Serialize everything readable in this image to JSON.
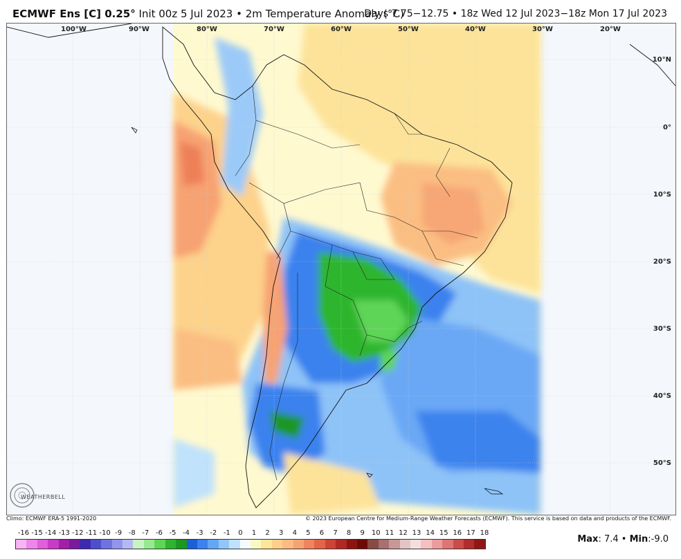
{
  "header": {
    "model": "ECMWF Ens [C] 0.25",
    "degree_sign": "°",
    "init": "Init 00z 5 Jul 2023",
    "bullet": "•",
    "product": "2m Temperature Anomaly (°C)",
    "valid": "Days 7.75−12.75 • 18z Wed 12 Jul 2023−18z Mon 17 Jul 2023"
  },
  "axes": {
    "longitudes": [
      "100°W",
      "90°W",
      "80°W",
      "70°W",
      "60°W",
      "50°W",
      "40°W",
      "30°W",
      "20°W"
    ],
    "latitudes": [
      "10°N",
      "0°",
      "10°S",
      "20°S",
      "30°S",
      "40°S",
      "50°S"
    ]
  },
  "footer": {
    "climo": "Climo: ECMWF ERA-5 1991-2020",
    "copyright": "© 2023 European Centre for Medium-Range Weather Forecasts (ECMWF). This service is based on data and products of the ECMWF."
  },
  "logo": {
    "text": "WEATHERBELL"
  },
  "colorbar": {
    "ticks": [
      "-16",
      "-15",
      "-14",
      "-13",
      "-12",
      "-11",
      "-10",
      "-9",
      "-8",
      "-7",
      "-6",
      "-5",
      "-4",
      "-3",
      "-2",
      "-1",
      "0",
      "1",
      "2",
      "3",
      "4",
      "5",
      "6",
      "7",
      "8",
      "9",
      "10",
      "11",
      "12",
      "13",
      "14",
      "15",
      "16",
      "17",
      "18"
    ],
    "colors": [
      "#f7a6f2",
      "#ee7ae8",
      "#dd4fd9",
      "#c22ac0",
      "#9e15a3",
      "#6a1a9a",
      "#3f2fb0",
      "#5a5fd4",
      "#7f88e8",
      "#a8b3f2",
      "#c2f5c0",
      "#8fe889",
      "#56d250",
      "#2cb02a",
      "#1a8f1e",
      "#1f5fd8",
      "#3d83ee",
      "#69a8f5",
      "#98c8f8",
      "#c4e4fb",
      "#f2fbff",
      "#fbfbc4",
      "#fde89b",
      "#fdd58b",
      "#fcc283",
      "#f8a875",
      "#f28b60",
      "#e6694b",
      "#d04a36",
      "#b32b23",
      "#8e1713",
      "#6b0c0a",
      "#7a2f2a",
      "#a06060",
      "#c29090",
      "#e2c0c0",
      "#f6e0e0",
      "#f8c8c8",
      "#f0a0a0",
      "#e47878",
      "#d45050",
      "#b83030",
      "#9a1a1a"
    ],
    "bar_colors": [
      "#f7b3f4",
      "#ee86ea",
      "#e05fdb",
      "#c83bc5",
      "#a21fa8",
      "#7a1a9e",
      "#3e2ab0",
      "#4f4fcc",
      "#6f73e0",
      "#9196ec",
      "#b4b9f4",
      "#c8f4c2",
      "#97e98f",
      "#5fd558",
      "#2fb52d",
      "#1c9720",
      "#1c5fd9",
      "#3a82ef",
      "#64a6f6",
      "#92c6f9",
      "#c0e2fc",
      "#f4fbff",
      "#fbf9c2",
      "#fde59a",
      "#fdd08a",
      "#fbbb82",
      "#f7a273",
      "#f0845d",
      "#e46449",
      "#cd4434",
      "#b02822",
      "#8c1512",
      "#6e0b08",
      "#8a4a44",
      "#a87070",
      "#c89898",
      "#e4c4c4",
      "#f4dede",
      "#f4c0c0",
      "#ec9c9c",
      "#de7474",
      "#cc4c4c",
      "#b22c2c",
      "#901616"
    ]
  },
  "stats": {
    "max_label": "Max",
    "max_value": "7.4",
    "min_label": "Min",
    "min_value": "-9.0"
  }
}
